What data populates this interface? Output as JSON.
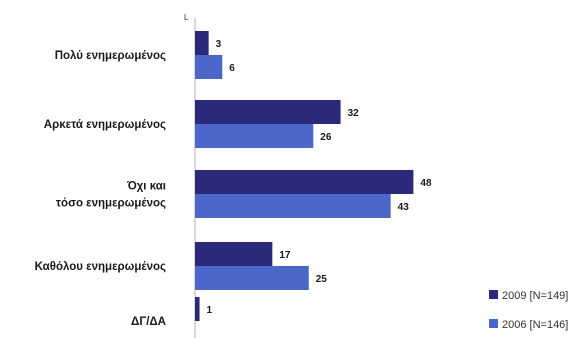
{
  "chart_data": {
    "type": "bar",
    "orientation": "horizontal",
    "categories": [
      [
        "Πολύ ενημερωμένος"
      ],
      [
        "Αρκετά ενημερωμένος"
      ],
      [
        "Όχι και",
        "τόσο ενημερωμένος"
      ],
      [
        "Καθόλου ενημερωμένος"
      ],
      [
        "ΔΓ/ΔΑ"
      ]
    ],
    "series": [
      {
        "name": "2009 [N=149]",
        "values": [
          3,
          32,
          48,
          17,
          1
        ],
        "color": "#2b2a7a"
      },
      {
        "name": "2006 [N=146]",
        "values": [
          6,
          26,
          43,
          25,
          null
        ],
        "color": "#4a67c9"
      }
    ],
    "axis_mark": "L",
    "grid": false,
    "legend_position": "bottom-right"
  }
}
